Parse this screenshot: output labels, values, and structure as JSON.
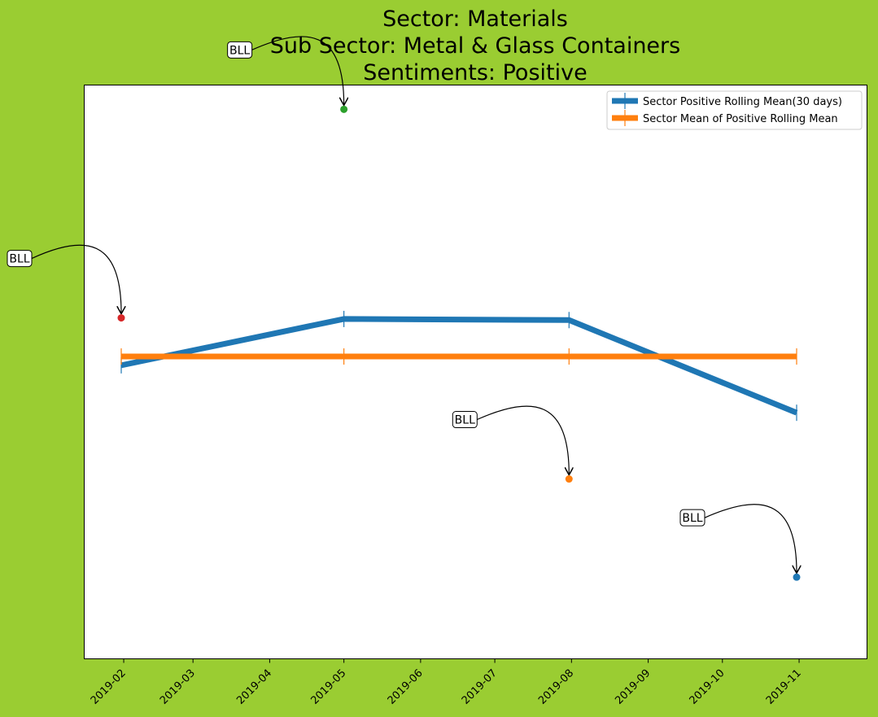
{
  "chart_data": {
    "type": "line",
    "title_lines": [
      "Sector:  Materials",
      "Sub Sector:  Metal & Glass Containers",
      "Sentiments:  Positive"
    ],
    "xlabel": "",
    "ylabel": "",
    "x_ticks": [
      "2019-02",
      "2019-03",
      "2019-04",
      "2019-05",
      "2019-06",
      "2019-07",
      "2019-08",
      "2019-09",
      "2019-10",
      "2019-11"
    ],
    "series": [
      {
        "name": "Sector Positive Rolling Mean(30 days)",
        "color": "#1f77b4",
        "points": [
          {
            "x": "2019-01-31",
            "y": 0.466
          },
          {
            "x": "2019-05-01",
            "y": 0.508
          },
          {
            "x": "2019-07-31",
            "y": 0.507
          },
          {
            "x": "2019-10-31",
            "y": 0.423
          }
        ]
      },
      {
        "name": "Sector Mean of Positive Rolling Mean",
        "color": "#ff7f0e",
        "points": [
          {
            "x": "2019-01-31",
            "y": 0.474
          },
          {
            "x": "2019-05-01",
            "y": 0.474
          },
          {
            "x": "2019-07-31",
            "y": 0.474
          },
          {
            "x": "2019-10-31",
            "y": 0.474
          }
        ]
      }
    ],
    "annotations": [
      {
        "label": "BLL",
        "x": "2019-01-31",
        "y": 0.509,
        "color": "#d62728"
      },
      {
        "label": "BLL",
        "x": "2019-05-01",
        "y": 0.698,
        "color": "#2ca02c"
      },
      {
        "label": "BLL",
        "x": "2019-07-31",
        "y": 0.363,
        "color": "#ff7f0e"
      },
      {
        "label": "BLL",
        "x": "2019-10-31",
        "y": 0.274,
        "color": "#1f77b4"
      }
    ],
    "ylim": [
      0.2,
      0.72
    ],
    "grid": false,
    "legend_position": "top-right"
  }
}
